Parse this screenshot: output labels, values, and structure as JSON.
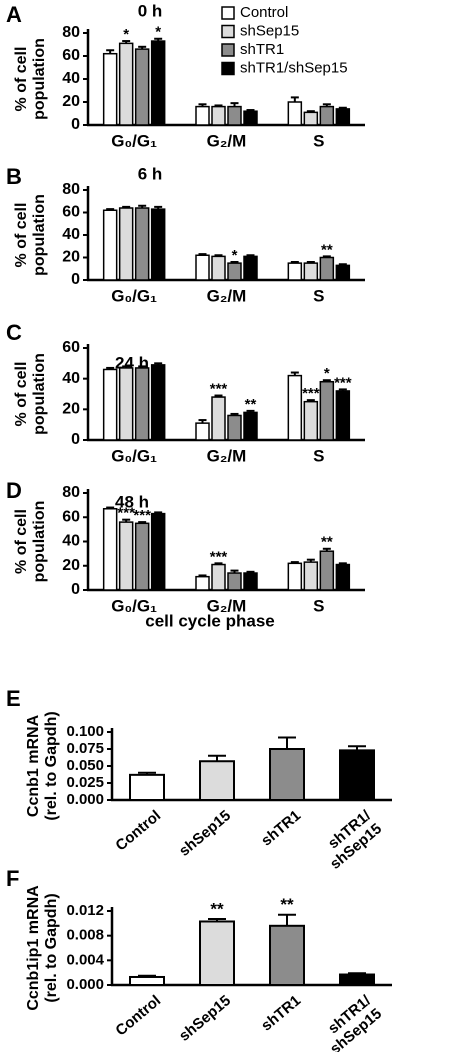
{
  "chart_data": [
    {
      "type": "bar",
      "panel": "A",
      "title": "0 h",
      "y_label": [
        "% of cell",
        "population"
      ],
      "categories": [
        "G₀/G₁",
        "G₂/M",
        "S"
      ],
      "ylim": [
        0,
        80
      ],
      "yticks": [
        0,
        20,
        40,
        60,
        80
      ],
      "legend": "upper right",
      "series": [
        {
          "name": "Control",
          "color": "#ffffff",
          "values": [
            62,
            16,
            20
          ],
          "errors": [
            3,
            2,
            4
          ]
        },
        {
          "name": "shSep15",
          "color": "#dcdcdc",
          "values": [
            71,
            16,
            11
          ],
          "errors": [
            2,
            1,
            1
          ]
        },
        {
          "name": "shTR1",
          "color": "#8c8c8c",
          "values": [
            66,
            16,
            16
          ],
          "errors": [
            2,
            3,
            2
          ]
        },
        {
          "name": "shTR1/shSep15",
          "color": "#000000",
          "values": [
            73,
            12,
            14
          ],
          "errors": [
            2,
            1,
            1
          ]
        }
      ],
      "annotations": [
        {
          "series": 1,
          "index": 0,
          "text": "*"
        },
        {
          "series": 3,
          "index": 0,
          "text": "*"
        }
      ]
    },
    {
      "type": "bar",
      "panel": "B",
      "title": "6 h",
      "y_label": [
        "% of cell",
        "population"
      ],
      "categories": [
        "G₀/G₁",
        "G₂/M",
        "S"
      ],
      "ylim": [
        0,
        80
      ],
      "yticks": [
        0,
        20,
        40,
        60,
        80
      ],
      "series": [
        {
          "color": "#ffffff",
          "values": [
            62,
            22,
            15
          ],
          "errors": [
            1,
            1,
            1
          ]
        },
        {
          "color": "#dcdcdc",
          "values": [
            64,
            21,
            15
          ],
          "errors": [
            1,
            1,
            1
          ]
        },
        {
          "color": "#8c8c8c",
          "values": [
            64,
            15,
            20
          ],
          "errors": [
            2,
            1,
            1
          ]
        },
        {
          "color": "#000000",
          "values": [
            63,
            21,
            13
          ],
          "errors": [
            2,
            1,
            1
          ]
        }
      ],
      "annotations": [
        {
          "series": 2,
          "index": 1,
          "text": "*"
        },
        {
          "series": 2,
          "index": 2,
          "text": "**"
        }
      ]
    },
    {
      "type": "bar",
      "panel": "C",
      "title": "24 h",
      "y_label": [
        "% of cell",
        "population"
      ],
      "categories": [
        "G₀/G₁",
        "G₂/M",
        "S"
      ],
      "ylim": [
        0,
        60
      ],
      "yticks": [
        0,
        20,
        40,
        60
      ],
      "series": [
        {
          "color": "#ffffff",
          "values": [
            46,
            11,
            42
          ],
          "errors": [
            1,
            2,
            2
          ]
        },
        {
          "color": "#dcdcdc",
          "values": [
            47,
            28,
            25
          ],
          "errors": [
            1,
            1,
            1
          ]
        },
        {
          "color": "#8c8c8c",
          "values": [
            47,
            16,
            38
          ],
          "errors": [
            1,
            1,
            1
          ]
        },
        {
          "color": "#000000",
          "values": [
            49,
            18,
            32
          ],
          "errors": [
            1,
            1,
            1
          ]
        }
      ],
      "annotations": [
        {
          "series": 1,
          "index": 1,
          "text": "***"
        },
        {
          "series": 3,
          "index": 1,
          "text": "**"
        },
        {
          "series": 1,
          "index": 2,
          "text": "***"
        },
        {
          "series": 2,
          "index": 2,
          "text": "*"
        },
        {
          "series": 3,
          "index": 2,
          "text": "***"
        }
      ]
    },
    {
      "type": "bar",
      "panel": "D",
      "title": "48 h",
      "y_label": [
        "% of cell",
        "population"
      ],
      "x_label": "cell cycle phase",
      "categories": [
        "G₀/G₁",
        "G₂/M",
        "S"
      ],
      "ylim": [
        0,
        80
      ],
      "yticks": [
        0,
        20,
        40,
        60,
        80
      ],
      "series": [
        {
          "color": "#ffffff",
          "values": [
            67,
            11,
            22
          ],
          "errors": [
            1,
            1,
            1
          ]
        },
        {
          "color": "#dcdcdc",
          "values": [
            56,
            21,
            23
          ],
          "errors": [
            2,
            1,
            2
          ]
        },
        {
          "color": "#8c8c8c",
          "values": [
            55,
            14,
            32
          ],
          "errors": [
            1,
            2,
            2
          ]
        },
        {
          "color": "#000000",
          "values": [
            63,
            14,
            21
          ],
          "errors": [
            1,
            1,
            1
          ]
        }
      ],
      "annotations": [
        {
          "series": 1,
          "index": 0,
          "text": "***"
        },
        {
          "series": 2,
          "index": 0,
          "text": "***"
        },
        {
          "series": 1,
          "index": 1,
          "text": "***"
        },
        {
          "series": 2,
          "index": 2,
          "text": "**"
        }
      ]
    },
    {
      "type": "bar",
      "panel": "E",
      "y_label": [
        "Ccnb1 mRNA",
        "(rel. to Gapdh)"
      ],
      "categories": [
        "Control",
        "shSep15",
        "shTR1",
        "shTR1/shSep15"
      ],
      "colors": [
        "#ffffff",
        "#dcdcdc",
        "#8c8c8c",
        "#000000"
      ],
      "values": [
        0.037,
        0.057,
        0.075,
        0.073
      ],
      "errors": [
        0.003,
        0.008,
        0.017,
        0.006
      ],
      "ylim": [
        0,
        0.1
      ],
      "yticks": [
        {
          "value": 0,
          "label": "0.000"
        },
        {
          "value": 0.025,
          "label": "0.025"
        },
        {
          "value": 0.05,
          "label": "0.050"
        },
        {
          "value": 0.075,
          "label": "0.075"
        },
        {
          "value": 0.1,
          "label": "0.100"
        }
      ]
    },
    {
      "type": "bar",
      "panel": "F",
      "y_label": [
        "Ccnb1ip1 mRNA",
        "(rel. to Gapdh)"
      ],
      "categories": [
        "Control",
        "shSep15",
        "shTR1",
        "shTR1/shSep15"
      ],
      "colors": [
        "#ffffff",
        "#dcdcdc",
        "#8c8c8c",
        "#000000"
      ],
      "values": [
        0.0013,
        0.0103,
        0.0096,
        0.0017
      ],
      "errors": [
        0.0002,
        0.0004,
        0.0018,
        0.0002
      ],
      "ylim": [
        0,
        0.012
      ],
      "yticks": [
        {
          "value": 0,
          "label": "0.000"
        },
        {
          "value": 0.004,
          "label": "0.004"
        },
        {
          "value": 0.008,
          "label": "0.008"
        },
        {
          "value": 0.012,
          "label": "0.012"
        }
      ],
      "annotations": [
        {
          "index": 1,
          "text": "**"
        },
        {
          "index": 2,
          "text": "**"
        }
      ]
    }
  ]
}
